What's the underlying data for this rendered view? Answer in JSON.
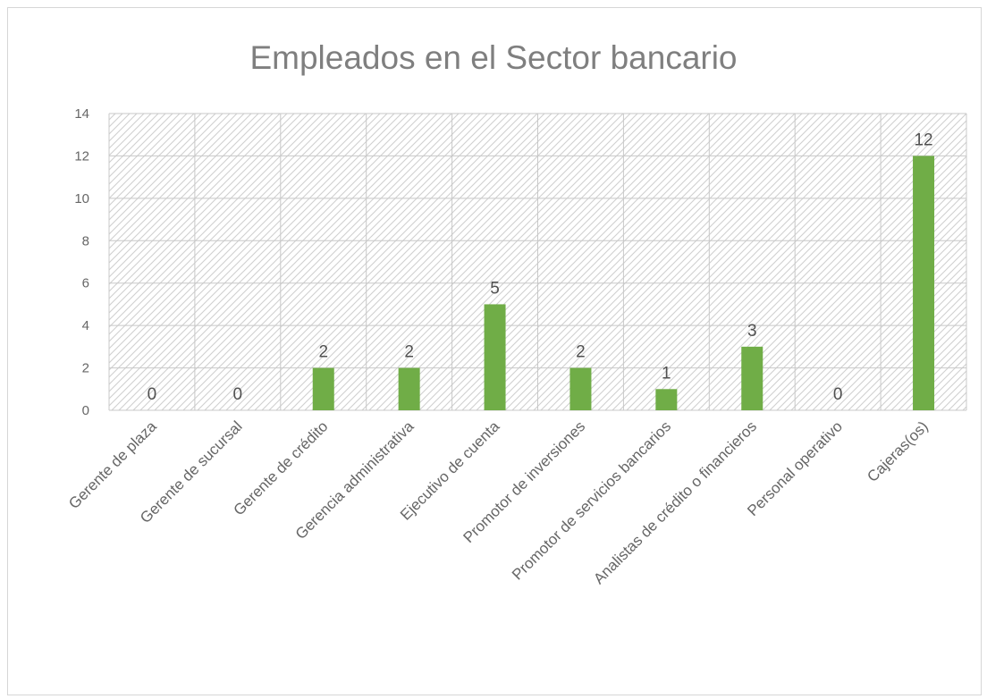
{
  "chart_data": {
    "type": "bar",
    "title": "Empleados en el Sector bancario",
    "xlabel": "",
    "ylabel": "",
    "categories": [
      "Gerente de plaza",
      "Gerente de sucursal",
      "Gerente de crédito",
      "Gerencia administrativa",
      "Ejecutivo de cuenta",
      "Promotor de inversiones",
      "Promotor de servicios bancarios",
      "Analistas de crédito o financieros",
      "Personal operativo",
      "Cajeras(os)"
    ],
    "values": [
      0,
      0,
      2,
      2,
      5,
      2,
      1,
      3,
      0,
      12
    ],
    "data_labels": [
      "0",
      "0",
      "2",
      "2",
      "5",
      "2",
      "1",
      "3",
      "0",
      "12"
    ],
    "ylim": [
      0,
      14
    ],
    "yticks": [
      "0",
      "2",
      "4",
      "6",
      "8",
      "10",
      "12",
      "14"
    ],
    "grid": true,
    "legend": "none",
    "colors": {
      "bar": "#70ad47",
      "grid": "#c8c8c8",
      "hatch": "#d0d0d0",
      "title": "#7f7f7f",
      "text": "#666666"
    }
  }
}
